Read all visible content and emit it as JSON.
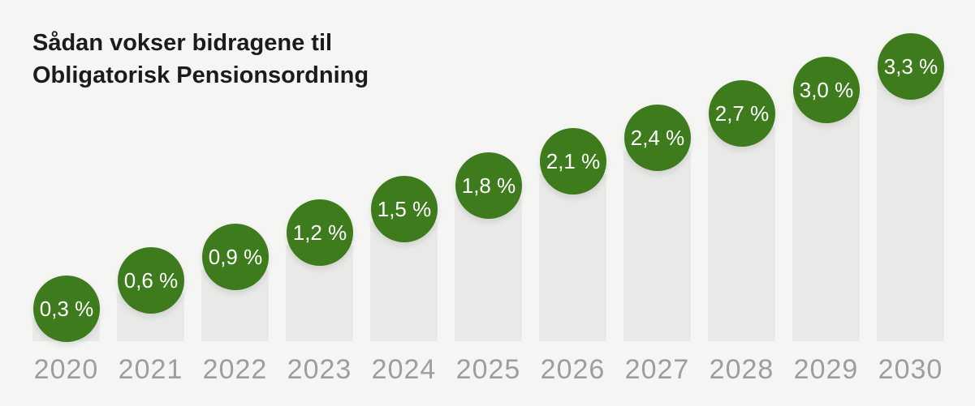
{
  "header": {
    "title_lines": [
      "Sådan vokser bidragene til",
      "Obligatorisk Pensionsordning"
    ]
  },
  "chart_data": {
    "type": "bar",
    "title": "Sådan vokser bidragene til Obligatorisk Pensionsordning",
    "categories": [
      "2020",
      "2021",
      "2022",
      "2023",
      "2024",
      "2025",
      "2026",
      "2027",
      "2028",
      "2029",
      "2030"
    ],
    "values": [
      0.3,
      0.6,
      0.9,
      1.2,
      1.5,
      1.8,
      2.1,
      2.4,
      2.7,
      3.0,
      3.3
    ],
    "value_labels": [
      "0,3 %",
      "0,6 %",
      "0,9 %",
      "1,2 %",
      "1,5 %",
      "1,8 %",
      "2,1 %",
      "2,4 %",
      "2,7 %",
      "3,0 %",
      "3,3 %"
    ],
    "unit": "%",
    "xlabel": "",
    "ylabel": "",
    "ylim": [
      0,
      3.5
    ],
    "grid": false,
    "legend": "none",
    "colors": {
      "accent_green": "#3d7b1d",
      "bubble_text": "#ffffff",
      "bar_fill": "#e9e9e7",
      "background": "#f5f5f3",
      "year_label": "#9e9e9e",
      "title_text": "#1b1b19"
    }
  }
}
